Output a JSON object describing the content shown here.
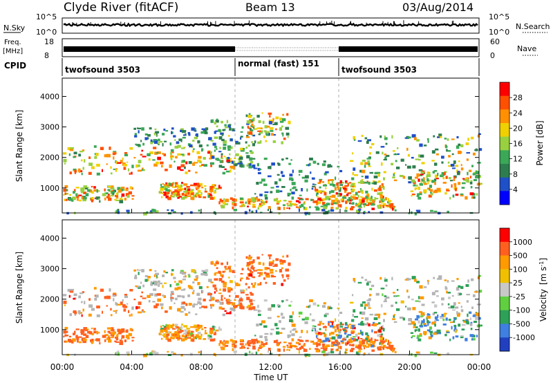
{
  "header": {
    "station": "Clyde River (fitACF)",
    "beam": "Beam 13",
    "date": "03/Aug/2014"
  },
  "colors": {
    "power": [
      "#0000ff",
      "#2050c8",
      "#2e7d4f",
      "#3aa857",
      "#98d040",
      "#f0d000",
      "#ff9000",
      "#ff5000",
      "#ff0000"
    ],
    "velocity": [
      "#2040c0",
      "#3f7fdf",
      "#2ea058",
      "#60d040",
      "#c8c8c8",
      "#f0c000",
      "#ff9a00",
      "#ff6020",
      "#ff0000"
    ],
    "ground_scatter": "#b4b4b4"
  },
  "chart_data": [
    {
      "type": "line",
      "panel": "sky-noise",
      "ylabel": "N.Sky",
      "ylabel_right": "N.Search",
      "yticks_left": [
        "10^5",
        "10^0"
      ],
      "yticks_right": [
        "10^5",
        "10^0"
      ],
      "yscale": "log",
      "ylim": [
        1,
        100000
      ]
    },
    {
      "type": "line",
      "panel": "frequency",
      "ylabel": "Freq.",
      "yunit": "[MHz]",
      "ylabel_right": "Nave",
      "yticks_left": [
        "18",
        "8"
      ],
      "yticks_right": [
        "60",
        "0"
      ],
      "ylim": [
        8,
        18
      ],
      "ylim_right": [
        0,
        60
      ]
    },
    {
      "type": "table",
      "panel": "cpid",
      "label": "CPID",
      "segments": [
        {
          "start_h": 0,
          "end_h": 10,
          "name": "twofsound 3503"
        },
        {
          "start_h": 10,
          "end_h": 16,
          "name": "normal (fast) 151"
        },
        {
          "start_h": 16,
          "end_h": 24,
          "name": "twofsound 3503"
        }
      ]
    },
    {
      "type": "heatmap",
      "panel": "power",
      "ylabel": "Slant Range [km]",
      "yticks": [
        "1000",
        "2000",
        "3000",
        "4000"
      ],
      "ylim": [
        180,
        4600
      ],
      "xlim": [
        0,
        24
      ],
      "colorbar_label": "Power [dB]",
      "colorbar_ticks": [
        "4",
        "8",
        "12",
        "16",
        "20",
        "24",
        "28"
      ],
      "colorbar_range": [
        0,
        32
      ]
    },
    {
      "type": "heatmap",
      "panel": "velocity",
      "ylabel": "Slant Range [km]",
      "yticks": [
        "1000",
        "2000",
        "3000",
        "4000"
      ],
      "ylim": [
        180,
        4600
      ],
      "xlim": [
        0,
        24
      ],
      "xlabel": "Time UT",
      "xticks": [
        "00:00",
        "04:00",
        "08:00",
        "12:00",
        "16:00",
        "20:00",
        "00:00"
      ],
      "colorbar_label": "Velocity",
      "colorbar_unit": "[m s",
      "colorbar_unit_sup": "-1",
      "colorbar_unit_end": "]",
      "colorbar_ticks": [
        "1000",
        "500",
        "100",
        "25",
        "-25",
        "-100",
        "-500",
        "-1000"
      ]
    }
  ]
}
